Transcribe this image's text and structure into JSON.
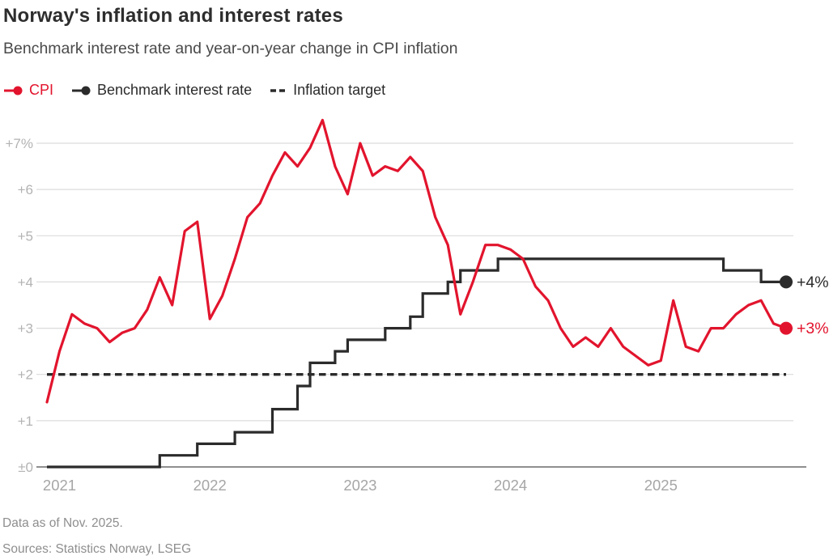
{
  "header": {
    "title": "Norway's inflation and interest rates",
    "subtitle": "Benchmark interest rate and year-on-year change in CPI inflation"
  },
  "legend": {
    "items": [
      {
        "label": "CPI",
        "color": "#e2142d",
        "marker": "line-dot"
      },
      {
        "label": "Benchmark interest rate",
        "color": "#2b2b2b",
        "marker": "line-dot"
      },
      {
        "label": "Inflation target",
        "color": "#2b2b2b",
        "marker": "dashes"
      }
    ]
  },
  "chart_data": {
    "type": "line",
    "frequency": "monthly",
    "start_month": "2020-12",
    "end_month": "2025-11",
    "ylim": [
      0,
      7
    ],
    "grid": "horizontal",
    "legend_position": "top-left",
    "y_ticks": [
      {
        "value": 7,
        "label": "+7%"
      },
      {
        "value": 6,
        "label": "+6"
      },
      {
        "value": 5,
        "label": "+5"
      },
      {
        "value": 4,
        "label": "+4"
      },
      {
        "value": 3,
        "label": "+3"
      },
      {
        "value": 2,
        "label": "+2"
      },
      {
        "value": 1,
        "label": "+1"
      },
      {
        "value": 0,
        "label": "±0"
      }
    ],
    "x_ticks": [
      {
        "month_index": 1,
        "label": "2021"
      },
      {
        "month_index": 13,
        "label": "2022"
      },
      {
        "month_index": 25,
        "label": "2023"
      },
      {
        "month_index": 37,
        "label": "2024"
      },
      {
        "month_index": 49,
        "label": "2025"
      }
    ],
    "series": [
      {
        "name": "CPI",
        "type": "line",
        "color": "#e2142d",
        "end_label": "+3%",
        "end_value": 3.0,
        "values": [
          1.4,
          2.5,
          3.3,
          3.1,
          3.0,
          2.7,
          2.9,
          3.0,
          3.4,
          4.1,
          3.5,
          5.1,
          5.3,
          3.2,
          3.7,
          4.5,
          5.4,
          5.7,
          6.3,
          6.8,
          6.5,
          6.9,
          7.5,
          6.5,
          5.9,
          7.0,
          6.3,
          6.5,
          6.4,
          6.7,
          6.4,
          5.4,
          4.8,
          3.3,
          4.0,
          4.8,
          4.8,
          4.7,
          4.5,
          3.9,
          3.6,
          3.0,
          2.6,
          2.8,
          2.6,
          3.0,
          2.6,
          2.4,
          2.2,
          2.3,
          3.6,
          2.6,
          2.5,
          3.0,
          3.0,
          3.3,
          3.5,
          3.6,
          3.1,
          3.0
        ]
      },
      {
        "name": "Benchmark interest rate",
        "type": "step",
        "color": "#2b2b2b",
        "end_label": "+4%",
        "end_value": 4.0,
        "values": [
          0,
          0,
          0,
          0,
          0,
          0,
          0,
          0,
          0,
          0.25,
          0.25,
          0.25,
          0.5,
          0.5,
          0.5,
          0.75,
          0.75,
          0.75,
          1.25,
          1.25,
          1.75,
          2.25,
          2.25,
          2.5,
          2.75,
          2.75,
          2.75,
          3.0,
          3.0,
          3.25,
          3.75,
          3.75,
          4.0,
          4.25,
          4.25,
          4.25,
          4.5,
          4.5,
          4.5,
          4.5,
          4.5,
          4.5,
          4.5,
          4.5,
          4.5,
          4.5,
          4.5,
          4.5,
          4.5,
          4.5,
          4.5,
          4.5,
          4.5,
          4.5,
          4.25,
          4.25,
          4.25,
          4.0,
          4.0,
          4.0
        ]
      }
    ],
    "reference_line": {
      "name": "Inflation target",
      "value": 2.0,
      "style": "dashed",
      "color": "#2b2b2b"
    }
  },
  "footer": {
    "note": "Data as of Nov. 2025.",
    "sources": "Sources: Statistics Norway, LSEG"
  },
  "colors": {
    "accent_red": "#e2142d",
    "line_black": "#2b2b2b",
    "grid": "#dcdcdc",
    "axis": "#7f7f7f",
    "tick_label": "#b3b3b3",
    "year_label": "#a6a6a6"
  }
}
